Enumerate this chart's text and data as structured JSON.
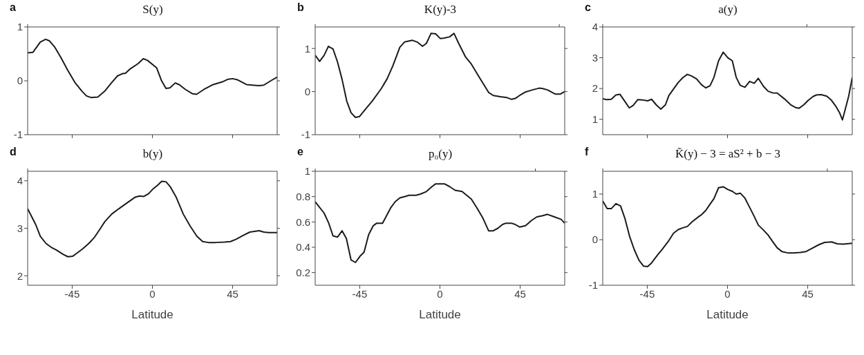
{
  "chart_data": [
    {
      "type": "line",
      "title": "S(y)",
      "annotations": [
        "a"
      ],
      "tick_labels": "y",
      "color": "#1a1a1a",
      "xlim": [
        -70,
        70
      ],
      "xticks": [
        -45,
        0,
        45
      ],
      "ylim": [
        -1,
        1
      ],
      "yticks": [
        -1,
        0,
        1
      ],
      "x": [
        -70,
        -67,
        -62.9,
        -59.9,
        -57.7,
        -54.9,
        -51.3,
        -47.4,
        -43.5,
        -39.6,
        -37,
        -34.5,
        -30.6,
        -26.7,
        -22.8,
        -19.6,
        -17,
        -15.1,
        -12.5,
        -8,
        -5.1,
        -2.8,
        2.4,
        5,
        7.6,
        9.8,
        12.8,
        15,
        18.5,
        22.4,
        24.8,
        28.9,
        34.1,
        39.2,
        42.5,
        45,
        47.6,
        52.8,
        56,
        59.9,
        62.5,
        66.4,
        70
      ],
      "values": [
        0.52,
        0.53,
        0.72,
        0.77,
        0.74,
        0.63,
        0.43,
        0.19,
        -0.03,
        -0.19,
        -0.28,
        -0.31,
        -0.3,
        -0.19,
        -0.03,
        0.09,
        0.13,
        0.14,
        0.22,
        0.32,
        0.41,
        0.38,
        0.24,
        0.01,
        -0.14,
        -0.13,
        -0.04,
        -0.07,
        -0.16,
        -0.24,
        -0.25,
        -0.16,
        -0.07,
        -0.02,
        0.03,
        0.04,
        0.02,
        -0.07,
        -0.08,
        -0.09,
        -0.08,
        0,
        0.07
      ]
    },
    {
      "type": "line",
      "title": "K(y)-3",
      "annotations": [
        "b"
      ],
      "tick_labels": "y",
      "color": "#1a1a1a",
      "xlim": [
        -70,
        70
      ],
      "xticks": [
        -45,
        0,
        45
      ],
      "ylim": [
        -1,
        1.5
      ],
      "yticks": [
        -1,
        0,
        1
      ],
      "x": [
        -70,
        -67.5,
        -65,
        -62.6,
        -60,
        -57.5,
        -54.9,
        -52.3,
        -49.9,
        -47.4,
        -45.2,
        -42.6,
        -38,
        -32.9,
        -29.6,
        -26.4,
        -22.5,
        -19.9,
        -15.4,
        -12.8,
        -9.8,
        -7.6,
        -5,
        -2.4,
        0.2,
        2.1,
        5.4,
        7.9,
        10.5,
        14.4,
        17.6,
        21.5,
        27.3,
        29.9,
        33.8,
        37.6,
        40.2,
        42.2,
        44.7,
        48,
        51.9,
        55.7,
        57.7,
        60.3,
        64.8,
        67.4,
        70
      ],
      "values": [
        0.84,
        0.7,
        0.84,
        1.05,
        0.99,
        0.69,
        0.28,
        -0.22,
        -0.49,
        -0.6,
        -0.58,
        -0.45,
        -0.22,
        0.07,
        0.3,
        0.6,
        1.03,
        1.15,
        1.19,
        1.15,
        1.05,
        1.12,
        1.35,
        1.34,
        1.23,
        1.24,
        1.27,
        1.35,
        1.12,
        0.8,
        0.64,
        0.37,
        -0.02,
        -0.09,
        -0.12,
        -0.14,
        -0.18,
        -0.16,
        -0.09,
        -0.01,
        0.04,
        0.08,
        0.07,
        0.04,
        -0.06,
        -0.06,
        0
      ]
    },
    {
      "type": "line",
      "title": "a(y)",
      "annotations": [
        "c"
      ],
      "tick_labels": "y",
      "color": "#1a1a1a",
      "xlim": [
        -70,
        70
      ],
      "xticks": [
        -45,
        0,
        45
      ],
      "ylim": [
        0.5,
        4
      ],
      "yticks": [
        1,
        2,
        3,
        4
      ],
      "x": [
        -70,
        -67.8,
        -65.2,
        -62.6,
        -60.3,
        -57.7,
        -55.1,
        -52.9,
        -50.3,
        -47.7,
        -44.8,
        -42.6,
        -40,
        -37.4,
        -34.8,
        -32.9,
        -27.7,
        -25.1,
        -22.5,
        -19.9,
        -17.3,
        -14.7,
        -12.2,
        -9.8,
        -7.6,
        -5,
        -2.4,
        0.2,
        2.7,
        4.9,
        7.2,
        9.8,
        12.4,
        15,
        17.3,
        20.2,
        22.8,
        25.3,
        27.9,
        31.8,
        35.7,
        38.3,
        40.2,
        42.8,
        45.4,
        48,
        49.9,
        52.5,
        55.7,
        58.3,
        60.7,
        62.9,
        64.5,
        66.1,
        68,
        70
      ],
      "values": [
        1.67,
        1.64,
        1.65,
        1.79,
        1.81,
        1.59,
        1.37,
        1.45,
        1.64,
        1.63,
        1.6,
        1.65,
        1.47,
        1.33,
        1.47,
        1.77,
        2.19,
        2.35,
        2.46,
        2.4,
        2.31,
        2.13,
        2.02,
        2.09,
        2.36,
        2.9,
        3.18,
        3,
        2.9,
        2.36,
        2.1,
        2.04,
        2.23,
        2.17,
        2.33,
        2.07,
        1.91,
        1.86,
        1.85,
        1.67,
        1.46,
        1.38,
        1.36,
        1.47,
        1.62,
        1.74,
        1.79,
        1.8,
        1.75,
        1.62,
        1.43,
        1.21,
        0.98,
        1.33,
        1.75,
        2.36
      ]
    },
    {
      "type": "line",
      "title": "b(y)",
      "annotations": [
        "d"
      ],
      "xlabel": "Latitude",
      "color": "#1a1a1a",
      "xlim": [
        -70,
        70
      ],
      "xticks": [
        -45,
        0,
        45
      ],
      "ylim": [
        1.8,
        4.2
      ],
      "yticks": [
        2,
        3,
        4
      ],
      "x": [
        -70,
        -65.5,
        -62.9,
        -59.7,
        -56.4,
        -53.8,
        -50,
        -47.4,
        -44.8,
        -42.2,
        -39,
        -35.7,
        -32.5,
        -29.3,
        -26.7,
        -22.8,
        -18.9,
        -15.1,
        -12.5,
        -9.9,
        -7.3,
        -4.8,
        -2.1,
        0.4,
        3,
        5.2,
        7.6,
        10.1,
        13.4,
        17.3,
        21.1,
        25,
        28.2,
        31.5,
        35.4,
        40.5,
        43.8,
        47,
        50.9,
        54.7,
        59.9,
        62.5,
        65.1,
        70
      ],
      "values": [
        3.41,
        3.08,
        2.83,
        2.68,
        2.59,
        2.54,
        2.45,
        2.4,
        2.41,
        2.48,
        2.57,
        2.68,
        2.81,
        2.99,
        3.14,
        3.3,
        3.41,
        3.51,
        3.58,
        3.65,
        3.68,
        3.67,
        3.73,
        3.83,
        3.91,
        3.99,
        3.98,
        3.87,
        3.65,
        3.3,
        3.05,
        2.83,
        2.72,
        2.7,
        2.7,
        2.71,
        2.72,
        2.77,
        2.85,
        2.92,
        2.95,
        2.92,
        2.91,
        2.91
      ]
    },
    {
      "type": "line",
      "title": "p₀(y)",
      "annotations": [
        "e"
      ],
      "xlabel": "Latitude",
      "color": "#1a1a1a",
      "xlim": [
        -70,
        70
      ],
      "xticks": [
        -45,
        0,
        45
      ],
      "ylim": [
        0.1,
        1
      ],
      "yticks": [
        0.2,
        0.4,
        0.6,
        0.8,
        1
      ],
      "x": [
        -70,
        -67.8,
        -65,
        -62.4,
        -60,
        -57.5,
        -54.9,
        -52.5,
        -49.9,
        -47.4,
        -44.8,
        -42.6,
        -40,
        -37.4,
        -35.5,
        -32.2,
        -30.3,
        -27.7,
        -25.1,
        -22.5,
        -19.9,
        -17.3,
        -13.5,
        -10.9,
        -7.6,
        -4.4,
        -2.5,
        0.1,
        2.7,
        5.3,
        8.5,
        12.4,
        15,
        17.6,
        20.8,
        24.1,
        27.3,
        29.9,
        32.5,
        35.1,
        37,
        40.2,
        42.2,
        44.7,
        48,
        51.2,
        54.4,
        57.7,
        60.3,
        64.2,
        68,
        70
      ],
      "values": [
        0.76,
        0.72,
        0.67,
        0.59,
        0.49,
        0.48,
        0.53,
        0.47,
        0.3,
        0.28,
        0.33,
        0.36,
        0.5,
        0.57,
        0.59,
        0.59,
        0.64,
        0.71,
        0.76,
        0.79,
        0.8,
        0.81,
        0.81,
        0.82,
        0.84,
        0.88,
        0.9,
        0.9,
        0.9,
        0.88,
        0.85,
        0.84,
        0.81,
        0.78,
        0.71,
        0.63,
        0.53,
        0.53,
        0.55,
        0.58,
        0.59,
        0.59,
        0.58,
        0.56,
        0.57,
        0.61,
        0.64,
        0.65,
        0.66,
        0.64,
        0.62,
        0.59
      ]
    },
    {
      "type": "line",
      "title": "K̃(y) − 3 = aS² + b − 3",
      "annotations": [
        "f"
      ],
      "xlabel": "Latitude",
      "color": "#1a1a1a",
      "xlim": [
        -70,
        70
      ],
      "xticks": [
        -45,
        0,
        45
      ],
      "ylim": [
        -1,
        1.5
      ],
      "yticks": [
        -1,
        0,
        1
      ],
      "x": [
        -70,
        -67.5,
        -65.2,
        -62.6,
        -60,
        -57.5,
        -54.9,
        -52.3,
        -49.7,
        -47.1,
        -44.8,
        -42.6,
        -39.3,
        -36.8,
        -32.9,
        -30.3,
        -27.7,
        -25.1,
        -22.5,
        -19.9,
        -16,
        -14.8,
        -12.2,
        -9.6,
        -7.6,
        -5,
        -2.4,
        0.2,
        2.7,
        4.9,
        7.2,
        9.8,
        12.4,
        15,
        17.3,
        20.2,
        22.8,
        25.3,
        27.9,
        30.5,
        33.8,
        37,
        40.9,
        44.1,
        47.4,
        51.3,
        54.5,
        58.4,
        61.6,
        64.8,
        70
      ],
      "values": [
        0.85,
        0.68,
        0.68,
        0.79,
        0.74,
        0.46,
        0.07,
        -0.22,
        -0.45,
        -0.58,
        -0.59,
        -0.51,
        -0.34,
        -0.22,
        -0.02,
        0.14,
        0.22,
        0.26,
        0.29,
        0.39,
        0.51,
        0.54,
        0.64,
        0.79,
        0.9,
        1.14,
        1.16,
        1.1,
        1.06,
        1,
        1.02,
        0.91,
        0.71,
        0.51,
        0.32,
        0.21,
        0.1,
        -0.04,
        -0.18,
        -0.26,
        -0.29,
        -0.29,
        -0.28,
        -0.26,
        -0.19,
        -0.11,
        -0.06,
        -0.05,
        -0.09,
        -0.1,
        -0.08
      ]
    }
  ]
}
